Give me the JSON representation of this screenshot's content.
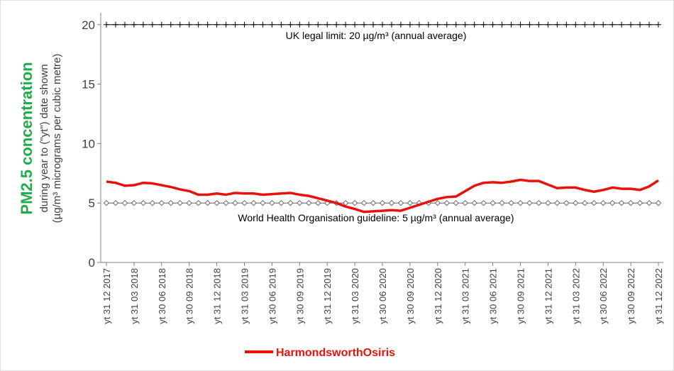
{
  "chart_data": {
    "type": "line",
    "y_label": "PM2.5 concentration",
    "y_sublabels": [
      "during year to (\"yt\") date shown",
      "(µg/m³ micrograms per cubic metre)"
    ],
    "categories": [
      "yt 31 12 2017",
      null,
      null,
      "yt 31 03 2018",
      null,
      null,
      "yt 30 06 2018",
      null,
      null,
      "yt 30 09 2018",
      null,
      null,
      "yt 31 12 2018",
      null,
      null,
      "yt 31 03 2019",
      null,
      null,
      "yt 30 06 2019",
      null,
      null,
      "yt 30 09 2019",
      null,
      null,
      "yt 31 12 2019",
      null,
      null,
      "yt 31 03 2020",
      null,
      null,
      "yt 30 06 2020",
      null,
      null,
      "yt 30 09 2020",
      null,
      null,
      "yt 31 12 2020",
      null,
      null,
      "yt 31 03 2021",
      null,
      null,
      "yt 30 06 2021",
      null,
      null,
      "yt 30 09 2021",
      null,
      null,
      "yt 31 12 2021",
      null,
      null,
      "yt 31 03 2022",
      null,
      null,
      "yt 30 06 2022",
      null,
      null,
      "yt 30 09 2022",
      null,
      null,
      "yt 31 12 2022"
    ],
    "series": [
      {
        "name": "HarmondsworthOsiris",
        "color": "#e8120c",
        "values": [
          6.8,
          6.7,
          6.45,
          6.5,
          6.7,
          6.65,
          6.5,
          6.35,
          6.15,
          6.0,
          5.7,
          5.7,
          5.8,
          5.7,
          5.85,
          5.8,
          5.8,
          5.7,
          5.75,
          5.8,
          5.85,
          5.7,
          5.6,
          5.4,
          5.2,
          5.0,
          4.7,
          4.5,
          4.25,
          4.3,
          4.35,
          4.4,
          4.35,
          4.6,
          4.85,
          5.1,
          5.35,
          5.5,
          5.55,
          6.0,
          6.45,
          6.7,
          6.75,
          6.7,
          6.8,
          6.95,
          6.85,
          6.85,
          6.55,
          6.25,
          6.3,
          6.3,
          6.1,
          5.95,
          6.1,
          6.3,
          6.2,
          6.2,
          6.1,
          6.4,
          6.9
        ]
      }
    ],
    "reference_lines": [
      {
        "value": 20,
        "label": "UK legal limit: 20 µg/m³ (annual average)",
        "marker": "plus",
        "color": "#000000"
      },
      {
        "value": 5,
        "label": "World Health Organisation guideline: 5 µg/m³ (annual average)",
        "marker": "diamond",
        "color": "#666666"
      }
    ],
    "ylim": [
      0,
      21
    ],
    "yticks": [
      0,
      5,
      10,
      15,
      20
    ],
    "grid": false
  }
}
